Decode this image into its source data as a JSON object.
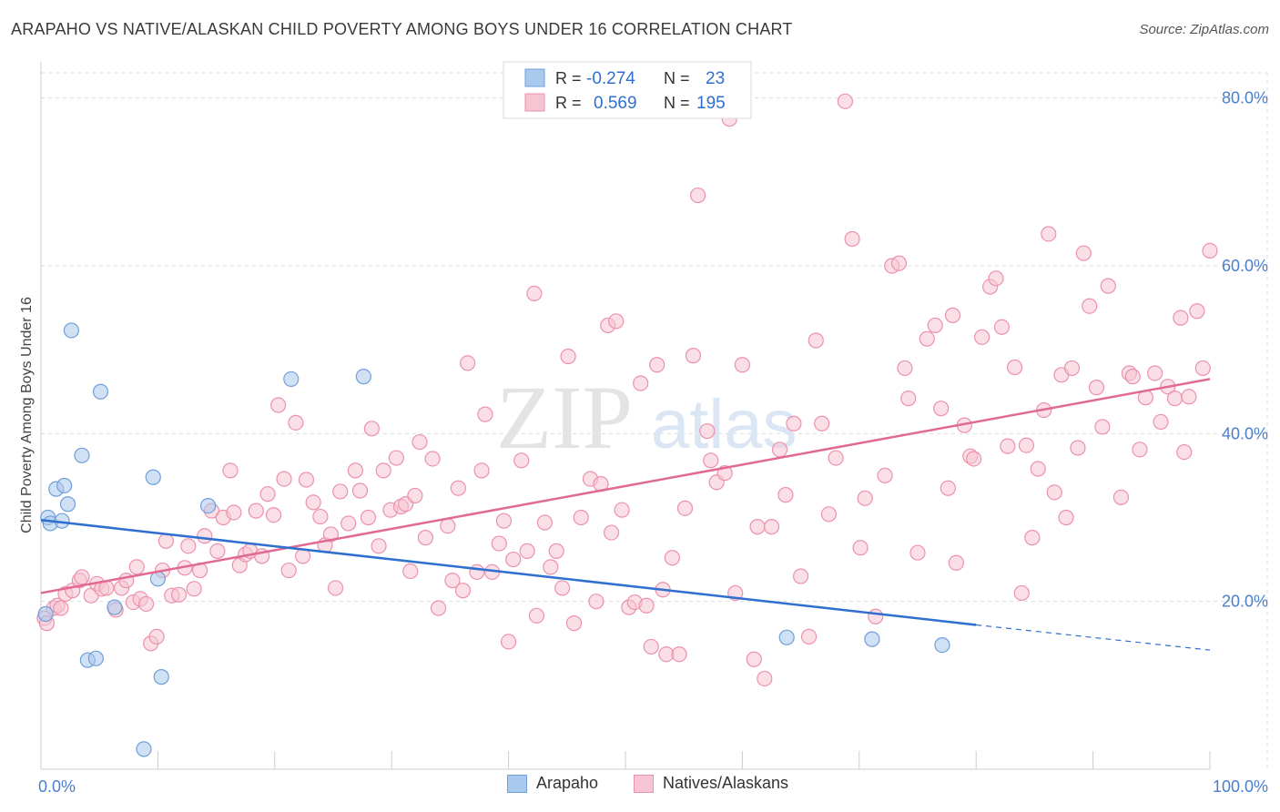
{
  "title": "ARAPAHO VS NATIVE/ALASKAN CHILD POVERTY AMONG BOYS UNDER 16 CORRELATION CHART",
  "source": "Source: ZipAtlas.com",
  "watermark": {
    "zip": "ZIP",
    "atlas": "atlas"
  },
  "colors": {
    "blue_fill": "#a9c9ef",
    "blue_stroke": "#6f9fd8",
    "blue_line": "#2f6fcf",
    "pink_fill": "#f6c4d2",
    "pink_stroke": "#ec91ad",
    "pink_line": "#e06a92",
    "tick_label": "#4a7fcf",
    "grid": "#dddddd"
  },
  "legend_top": {
    "rows": [
      {
        "series": "Arapaho",
        "r_label": "R =",
        "r_value": "-0.274",
        "n_label": "N =",
        "n_value": "23"
      },
      {
        "series": "Natives/Alaskans",
        "r_label": "R =",
        "r_value": "0.569",
        "n_label": "N =",
        "n_value": "195"
      }
    ]
  },
  "legend_bottom": [
    "Arapaho",
    "Natives/Alaskans"
  ],
  "chart_data": {
    "type": "scatter",
    "title": "ARAPAHO VS NATIVE/ALASKAN CHILD POVERTY AMONG BOYS UNDER 16 CORRELATION CHART",
    "xlabel": "",
    "ylabel": "Child Poverty Among Boys Under 16",
    "xlim": [
      0,
      100
    ],
    "ylim": [
      0,
      83
    ],
    "x_tick_labels": [
      "0.0%",
      "100.0%"
    ],
    "y_ticks": [
      20,
      40,
      60,
      80
    ],
    "y_tick_labels": [
      "20.0%",
      "40.0%",
      "60.0%",
      "80.0%"
    ],
    "grid": true,
    "legend_position": "top-center",
    "series": [
      {
        "name": "Arapaho",
        "color": "#a9c9ef",
        "trend": {
          "x0": 0,
          "y0": 29.7,
          "x1": 80,
          "y1": 17.2,
          "dashed_to_x": 100,
          "dashed_to_y": 14.2
        },
        "points": [
          [
            0.4,
            18.5
          ],
          [
            0.6,
            30.0
          ],
          [
            0.8,
            29.3
          ],
          [
            1.3,
            33.4
          ],
          [
            1.8,
            29.6
          ],
          [
            2.0,
            33.8
          ],
          [
            2.3,
            31.6
          ],
          [
            2.6,
            52.3
          ],
          [
            3.5,
            37.4
          ],
          [
            4.0,
            13.0
          ],
          [
            4.7,
            13.2
          ],
          [
            5.1,
            45.0
          ],
          [
            6.3,
            19.3
          ],
          [
            8.8,
            2.4
          ],
          [
            9.6,
            34.8
          ],
          [
            10.0,
            22.7
          ],
          [
            10.3,
            11.0
          ],
          [
            14.3,
            31.4
          ],
          [
            21.4,
            46.5
          ],
          [
            27.6,
            46.8
          ],
          [
            63.8,
            15.7
          ],
          [
            71.1,
            15.5
          ],
          [
            77.1,
            14.8
          ]
        ]
      },
      {
        "name": "Natives/Alaskans",
        "color": "#f6c4d2",
        "trend": {
          "x0": 0,
          "y0": 21.0,
          "x1": 100,
          "y1": 46.5
        },
        "points": [
          [
            0.3,
            18.0
          ],
          [
            0.5,
            17.4
          ],
          [
            1.1,
            19.2
          ],
          [
            1.4,
            19.5
          ],
          [
            1.7,
            19.2
          ],
          [
            2.1,
            20.9
          ],
          [
            2.7,
            21.3
          ],
          [
            3.3,
            22.5
          ],
          [
            3.5,
            22.9
          ],
          [
            4.3,
            20.7
          ],
          [
            4.8,
            22.1
          ],
          [
            5.2,
            21.5
          ],
          [
            5.6,
            21.6
          ],
          [
            6.4,
            19.0
          ],
          [
            6.9,
            21.6
          ],
          [
            7.3,
            22.5
          ],
          [
            7.9,
            19.9
          ],
          [
            8.2,
            24.1
          ],
          [
            8.5,
            20.3
          ],
          [
            9.0,
            19.7
          ],
          [
            9.4,
            15.0
          ],
          [
            9.9,
            15.8
          ],
          [
            10.4,
            23.7
          ],
          [
            10.7,
            27.2
          ],
          [
            11.2,
            20.7
          ],
          [
            11.8,
            20.8
          ],
          [
            12.3,
            24.0
          ],
          [
            12.6,
            26.6
          ],
          [
            13.1,
            21.5
          ],
          [
            13.6,
            23.7
          ],
          [
            14.0,
            27.8
          ],
          [
            14.6,
            30.8
          ],
          [
            15.1,
            26.0
          ],
          [
            15.6,
            30.0
          ],
          [
            16.2,
            35.6
          ],
          [
            16.5,
            30.6
          ],
          [
            17.0,
            24.3
          ],
          [
            17.5,
            25.6
          ],
          [
            17.9,
            26.0
          ],
          [
            18.4,
            30.8
          ],
          [
            18.9,
            25.4
          ],
          [
            19.4,
            32.8
          ],
          [
            19.9,
            30.3
          ],
          [
            20.3,
            43.4
          ],
          [
            20.8,
            34.6
          ],
          [
            21.2,
            23.7
          ],
          [
            21.8,
            41.3
          ],
          [
            22.4,
            25.4
          ],
          [
            22.7,
            34.5
          ],
          [
            23.3,
            31.8
          ],
          [
            23.9,
            30.1
          ],
          [
            24.3,
            26.7
          ],
          [
            24.8,
            28.0
          ],
          [
            25.2,
            21.6
          ],
          [
            25.6,
            33.1
          ],
          [
            26.3,
            29.3
          ],
          [
            26.9,
            35.6
          ],
          [
            27.3,
            33.2
          ],
          [
            28.0,
            30.0
          ],
          [
            28.3,
            40.6
          ],
          [
            28.9,
            26.6
          ],
          [
            29.3,
            35.6
          ],
          [
            29.9,
            30.9
          ],
          [
            30.4,
            37.1
          ],
          [
            30.8,
            31.3
          ],
          [
            31.2,
            31.6
          ],
          [
            31.6,
            23.6
          ],
          [
            32.0,
            32.6
          ],
          [
            32.4,
            39.0
          ],
          [
            32.9,
            27.6
          ],
          [
            33.5,
            37.0
          ],
          [
            34.0,
            19.2
          ],
          [
            34.8,
            29.0
          ],
          [
            35.2,
            22.5
          ],
          [
            35.7,
            33.5
          ],
          [
            36.1,
            21.3
          ],
          [
            36.5,
            48.4
          ],
          [
            37.3,
            23.5
          ],
          [
            37.7,
            35.6
          ],
          [
            38.0,
            42.3
          ],
          [
            38.6,
            23.5
          ],
          [
            39.2,
            26.9
          ],
          [
            39.6,
            29.6
          ],
          [
            40.0,
            15.2
          ],
          [
            40.4,
            25.0
          ],
          [
            41.1,
            36.8
          ],
          [
            41.6,
            26.0
          ],
          [
            42.2,
            56.7
          ],
          [
            42.4,
            18.3
          ],
          [
            43.1,
            29.4
          ],
          [
            43.6,
            24.1
          ],
          [
            44.1,
            26.0
          ],
          [
            44.6,
            21.6
          ],
          [
            45.1,
            49.2
          ],
          [
            45.6,
            17.4
          ],
          [
            46.2,
            30.0
          ],
          [
            47.0,
            34.6
          ],
          [
            47.5,
            20.0
          ],
          [
            47.9,
            34.0
          ],
          [
            48.5,
            52.9
          ],
          [
            48.8,
            28.2
          ],
          [
            49.2,
            53.4
          ],
          [
            49.7,
            30.9
          ],
          [
            50.3,
            19.3
          ],
          [
            50.8,
            19.9
          ],
          [
            51.3,
            46.0
          ],
          [
            51.8,
            19.5
          ],
          [
            52.2,
            14.6
          ],
          [
            52.7,
            48.2
          ],
          [
            53.2,
            21.4
          ],
          [
            53.5,
            13.7
          ],
          [
            54.0,
            25.2
          ],
          [
            54.6,
            13.7
          ],
          [
            55.1,
            31.1
          ],
          [
            55.8,
            49.3
          ],
          [
            56.2,
            68.4
          ],
          [
            57.0,
            40.3
          ],
          [
            57.3,
            36.8
          ],
          [
            57.8,
            34.2
          ],
          [
            58.5,
            35.3
          ],
          [
            58.9,
            77.5
          ],
          [
            59.4,
            21.0
          ],
          [
            60.0,
            48.2
          ],
          [
            61.0,
            13.1
          ],
          [
            61.3,
            28.9
          ],
          [
            61.9,
            10.8
          ],
          [
            62.5,
            28.9
          ],
          [
            63.2,
            38.1
          ],
          [
            63.7,
            32.7
          ],
          [
            64.4,
            41.2
          ],
          [
            65.0,
            23.0
          ],
          [
            65.7,
            15.8
          ],
          [
            66.3,
            51.1
          ],
          [
            66.8,
            41.2
          ],
          [
            67.4,
            30.4
          ],
          [
            68.0,
            37.1
          ],
          [
            68.8,
            79.6
          ],
          [
            69.4,
            63.2
          ],
          [
            70.1,
            26.4
          ],
          [
            70.5,
            32.3
          ],
          [
            71.4,
            18.2
          ],
          [
            72.2,
            35.0
          ],
          [
            72.8,
            60.0
          ],
          [
            73.4,
            60.3
          ],
          [
            73.9,
            47.8
          ],
          [
            74.2,
            44.2
          ],
          [
            75.0,
            25.8
          ],
          [
            75.8,
            51.3
          ],
          [
            76.5,
            52.9
          ],
          [
            77.0,
            43.0
          ],
          [
            77.6,
            33.5
          ],
          [
            78.0,
            54.1
          ],
          [
            78.3,
            24.6
          ],
          [
            79.0,
            41.0
          ],
          [
            79.5,
            37.3
          ],
          [
            79.8,
            37.0
          ],
          [
            80.5,
            51.5
          ],
          [
            81.2,
            57.5
          ],
          [
            81.7,
            58.5
          ],
          [
            82.2,
            52.7
          ],
          [
            82.7,
            38.5
          ],
          [
            83.3,
            47.9
          ],
          [
            83.9,
            21.0
          ],
          [
            84.3,
            38.6
          ],
          [
            84.8,
            27.6
          ],
          [
            85.3,
            35.8
          ],
          [
            85.8,
            42.8
          ],
          [
            86.2,
            63.8
          ],
          [
            86.7,
            33.0
          ],
          [
            87.3,
            47.0
          ],
          [
            87.7,
            30.0
          ],
          [
            88.2,
            47.8
          ],
          [
            88.7,
            38.3
          ],
          [
            89.2,
            61.5
          ],
          [
            89.7,
            55.2
          ],
          [
            90.3,
            45.5
          ],
          [
            90.8,
            40.8
          ],
          [
            91.3,
            57.6
          ],
          [
            92.4,
            32.4
          ],
          [
            93.1,
            47.2
          ],
          [
            93.4,
            46.8
          ],
          [
            94.0,
            38.1
          ],
          [
            94.5,
            44.3
          ],
          [
            95.3,
            47.2
          ],
          [
            95.8,
            41.4
          ],
          [
            96.4,
            45.6
          ],
          [
            97.0,
            44.2
          ],
          [
            97.5,
            53.8
          ],
          [
            97.8,
            37.8
          ],
          [
            98.2,
            44.4
          ],
          [
            98.9,
            54.6
          ],
          [
            99.4,
            47.8
          ],
          [
            100.0,
            61.8
          ]
        ]
      }
    ]
  }
}
